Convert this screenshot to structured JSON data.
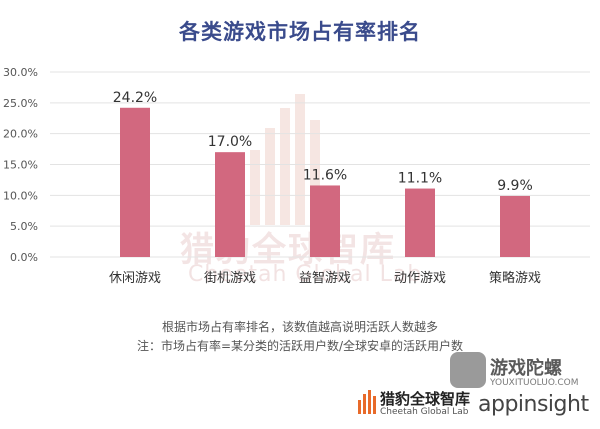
{
  "chart_data": {
    "type": "bar",
    "title": "各类游戏市场占有率排名",
    "categories": [
      "休闲游戏",
      "街机游戏",
      "益智游戏",
      "动作游戏",
      "策略游戏"
    ],
    "values": [
      24.2,
      17.0,
      11.6,
      11.1,
      9.9
    ],
    "value_labels": [
      "24.2%",
      "17.0%",
      "11.6%",
      "11.1%",
      "9.9%"
    ],
    "y_ticks": [
      "30.0%",
      "25.0%",
      "20.0%",
      "15.0%",
      "10.0%",
      "5.0%",
      "0.0%"
    ],
    "ylim": [
      0,
      30
    ],
    "grid": true,
    "bar_color": "#d2687f",
    "title_color": "#3a4b8c"
  },
  "notes": {
    "line1": "根据市场占有率排名，该数值越高说明活跃人数越多",
    "line2": "注：市场占有率=某分类的活跃用户数/全球安卓的活跃用户数"
  },
  "watermark": {
    "cn": "猎豹全球智库",
    "en": "Cheetah Global Lab"
  },
  "brand": {
    "cn": "猎豹全球智库",
    "en": "Cheetah Global Lab",
    "appinsight": "appinsight"
  },
  "source_logo": {
    "cn": "游戏陀螺",
    "en": "YOUXITUOLUO.COM"
  }
}
